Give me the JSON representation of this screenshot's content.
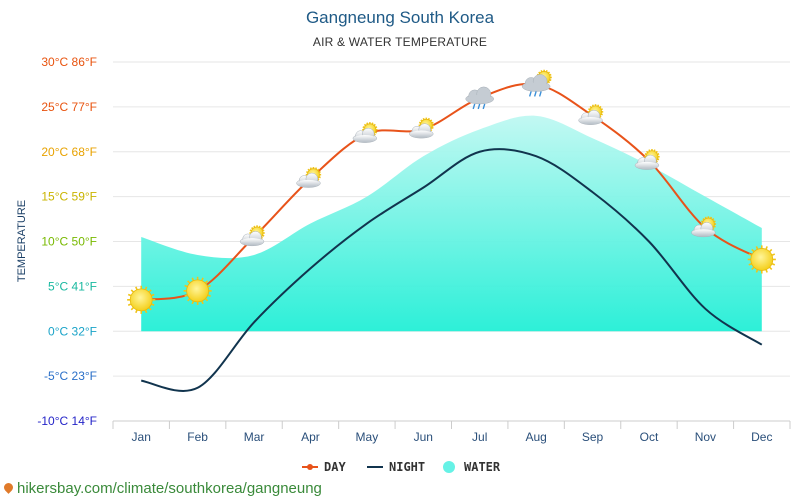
{
  "chart_data": {
    "type": "line",
    "title": "Gangneung South Korea",
    "subtitle": "AIR & WATER TEMPERATURE",
    "ylabel": "TEMPERATURE",
    "categories": [
      "Jan",
      "Feb",
      "Mar",
      "Apr",
      "May",
      "Jun",
      "Jul",
      "Aug",
      "Sep",
      "Oct",
      "Nov",
      "Dec"
    ],
    "ylim": [
      -10,
      30
    ],
    "yticks": [
      {
        "value": 30,
        "label": "30°C 86°F",
        "color": "#e8530e"
      },
      {
        "value": 25,
        "label": "25°C 77°F",
        "color": "#e8530e"
      },
      {
        "value": 20,
        "label": "20°C 68°F",
        "color": "#e8a200"
      },
      {
        "value": 15,
        "label": "15°C 59°F",
        "color": "#c9b400"
      },
      {
        "value": 10,
        "label": "10°C 50°F",
        "color": "#78b900"
      },
      {
        "value": 5,
        "label": "5°C 41°F",
        "color": "#19b9a0"
      },
      {
        "value": 0,
        "label": "0°C 32°F",
        "color": "#1aa3c8"
      },
      {
        "value": -5,
        "label": "-5°C 23°F",
        "color": "#2a6fc8"
      },
      {
        "value": -10,
        "label": "-10°C 14°F",
        "color": "#2424c8"
      }
    ],
    "grid": true,
    "legend_position": "bottom",
    "series": [
      {
        "name": "DAY",
        "type": "line",
        "color": "#e8531a",
        "values": [
          3.5,
          4.5,
          10.5,
          17.0,
          22.0,
          22.5,
          26.0,
          27.5,
          24.0,
          19.0,
          11.5,
          8.0
        ]
      },
      {
        "name": "NIGHT",
        "type": "line",
        "color": "#11344e",
        "values": [
          -5.5,
          -6.3,
          1.0,
          7.0,
          12.0,
          16.0,
          20.0,
          19.5,
          15.5,
          10.0,
          2.5,
          -1.5
        ]
      },
      {
        "name": "WATER",
        "type": "area",
        "color": "#66f2e6",
        "values": [
          10.5,
          8.5,
          8.5,
          12.0,
          15.0,
          19.5,
          22.5,
          24.0,
          21.5,
          18.5,
          15.0,
          11.5
        ]
      }
    ],
    "weather_icons": [
      "sun",
      "sun",
      "sun-cloud",
      "sun-cloud",
      "sun-cloud",
      "sun-cloud",
      "rain-cloud",
      "rain-sun-cloud",
      "sun-cloud",
      "sun-cloud",
      "sun-cloud",
      "sun"
    ]
  },
  "footer": {
    "icon": "location-pin-icon",
    "text": "hikersbay.com/climate/southkorea/gangneung"
  }
}
